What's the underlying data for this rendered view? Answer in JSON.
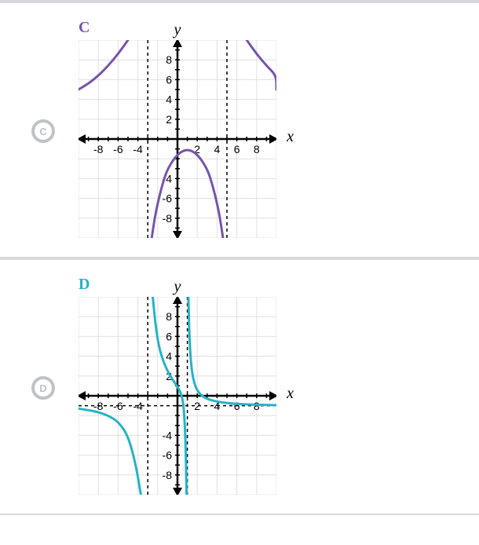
{
  "options": [
    {
      "id": "C",
      "label": "C",
      "label_color": "#7854ab",
      "radio_letter": "C",
      "chart": {
        "type": "rational-function-graph",
        "curve_color": "#7854ab",
        "curve_width": 3,
        "background_color": "#ffffff",
        "grid_color": "#e0e0e0",
        "axis_color": "#000000",
        "x_label": "x",
        "y_label": "y",
        "xlim": [
          -10,
          10
        ],
        "ylim": [
          -10,
          10
        ],
        "xticks": [
          -8,
          -6,
          -4,
          2,
          4,
          6,
          8
        ],
        "yticks_pos": [
          2,
          4,
          6,
          8
        ],
        "yticks_neg": [
          -4,
          -6,
          -8
        ],
        "tick_fontsize": 14,
        "vertical_asymptotes": [
          -3,
          5
        ],
        "asymptote_dash": "4,4",
        "asymptote_color": "#000000",
        "curves": [
          {
            "region": "left",
            "points": [
              [
                -10,
                5
              ],
              [
                -9,
                5.6
              ],
              [
                -8,
                6.4
              ],
              [
                -7,
                7.4
              ],
              [
                -6,
                8.6
              ],
              [
                -5,
                10
              ]
            ]
          },
          {
            "region": "middle",
            "points": [
              [
                -2.6,
                -10
              ],
              [
                -2.3,
                -8
              ],
              [
                -2,
                -6.5
              ],
              [
                -1.5,
                -4.5
              ],
              [
                -1,
                -3
              ],
              [
                0,
                -1.5
              ],
              [
                1,
                -1
              ],
              [
                2,
                -1.5
              ],
              [
                3,
                -3
              ],
              [
                3.5,
                -4.5
              ],
              [
                4,
                -6.5
              ],
              [
                4.3,
                -8
              ],
              [
                4.6,
                -10
              ]
            ]
          },
          {
            "region": "right",
            "points": [
              [
                7,
                10
              ],
              [
                8,
                8.6
              ],
              [
                9,
                7.4
              ],
              [
                10,
                6.4
              ],
              [
                10,
                5
              ]
            ]
          }
        ]
      }
    },
    {
      "id": "D",
      "label": "D",
      "label_color": "#26b3c7",
      "radio_letter": "D",
      "chart": {
        "type": "rational-function-graph",
        "curve_color": "#26b3c7",
        "curve_width": 3,
        "background_color": "#ffffff",
        "grid_color": "#e0e0e0",
        "axis_color": "#000000",
        "x_label": "x",
        "y_label": "y",
        "xlim": [
          -10,
          10
        ],
        "ylim": [
          -10,
          10
        ],
        "xticks": [
          -8,
          -6,
          -4,
          2,
          4,
          6,
          8
        ],
        "yticks_pos": [
          2,
          4,
          6,
          8
        ],
        "yticks_neg": [
          -4,
          -6,
          -8
        ],
        "tick_fontsize": 14,
        "vertical_asymptotes": [
          -3,
          1
        ],
        "horizontal_asymptote": -1,
        "asymptote_dash": "4,4",
        "asymptote_color": "#000000",
        "curves": [
          {
            "region": "left",
            "points": [
              [
                -10,
                -1.3
              ],
              [
                -9,
                -1.45
              ],
              [
                -8,
                -1.65
              ],
              [
                -7,
                -2
              ],
              [
                -6,
                -2.6
              ],
              [
                -5,
                -4
              ],
              [
                -4.2,
                -7
              ],
              [
                -3.7,
                -10
              ]
            ]
          },
          {
            "region": "middle",
            "points": [
              [
                -2.5,
                10
              ],
              [
                -2.2,
                7
              ],
              [
                -1.8,
                4.5
              ],
              [
                -1,
                2.4
              ],
              [
                0,
                0.9
              ],
              [
                0.3,
                0.4
              ],
              [
                0.6,
                -0.7
              ],
              [
                0.75,
                -3
              ],
              [
                0.85,
                -6
              ],
              [
                0.92,
                -10
              ]
            ]
          },
          {
            "region": "right",
            "points": [
              [
                1.1,
                10
              ],
              [
                1.2,
                6
              ],
              [
                1.4,
                2.7
              ],
              [
                1.8,
                0.8
              ],
              [
                2.5,
                -0.1
              ],
              [
                3.5,
                -0.5
              ],
              [
                5,
                -0.75
              ],
              [
                7,
                -0.88
              ],
              [
                10,
                -0.95
              ]
            ]
          }
        ]
      }
    }
  ]
}
